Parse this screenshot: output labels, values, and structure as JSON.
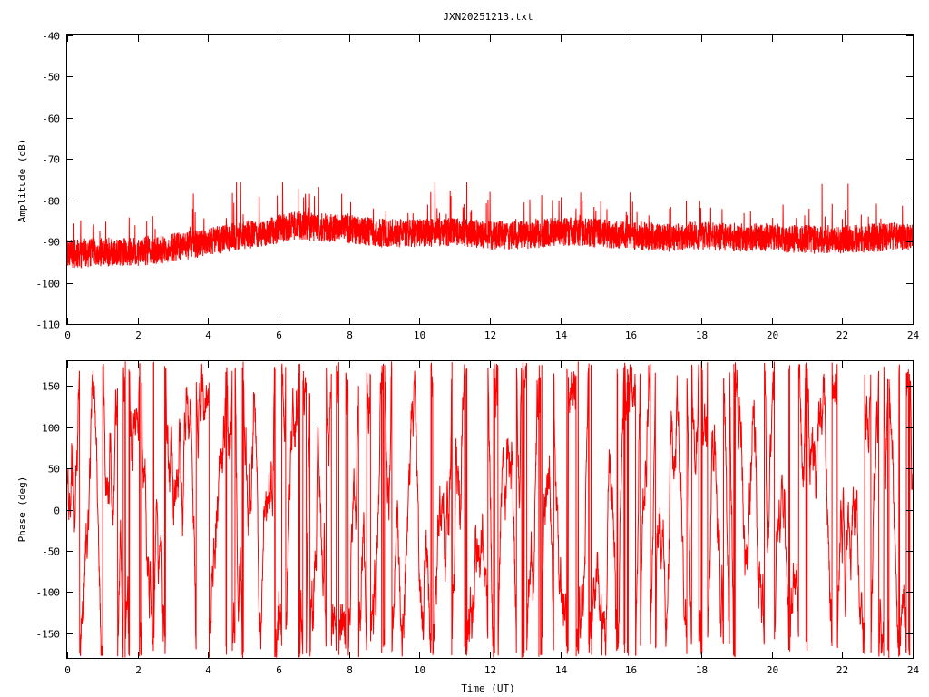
{
  "chart_data": [
    {
      "type": "line",
      "title": "JXN20251213.txt",
      "xlabel": "",
      "ylabel": "Amplitude (dB)",
      "xlim": [
        0,
        24
      ],
      "ylim": [
        -110,
        -40
      ],
      "xticks": [
        "0",
        "2",
        "4",
        "6",
        "8",
        "10",
        "12",
        "14",
        "16",
        "18",
        "20",
        "22",
        "24"
      ],
      "yticks": [
        "-40",
        "-50",
        "-60",
        "-70",
        "-80",
        "-90",
        "-100",
        "-110"
      ],
      "series": [
        {
          "color": "#ff0000",
          "trend_x": [
            0,
            1,
            2,
            3,
            4,
            5,
            6,
            6.5,
            7,
            8,
            9,
            10,
            11,
            12,
            13,
            14,
            15,
            16,
            17,
            18,
            19,
            20,
            21,
            22,
            23,
            24
          ],
          "trend_y": [
            -93,
            -92.5,
            -92.5,
            -91.5,
            -90,
            -88.5,
            -87,
            -86,
            -86.5,
            -87,
            -88,
            -88,
            -87.5,
            -88.5,
            -88.5,
            -87.5,
            -88,
            -88.5,
            -89,
            -88.5,
            -89,
            -89,
            -89.5,
            -89.5,
            -89,
            -88.5
          ],
          "band_halfwidth_db": 3.5,
          "spike_max_y": -75.5,
          "spike_min_y": -97
        }
      ]
    },
    {
      "type": "line",
      "xlabel": "Time (UT)",
      "ylabel": "Phase (deg)",
      "xlim": [
        0,
        24
      ],
      "ylim": [
        -180,
        180
      ],
      "xticks": [
        "0",
        "2",
        "4",
        "6",
        "8",
        "10",
        "12",
        "14",
        "16",
        "18",
        "20",
        "22",
        "24"
      ],
      "yticks": [
        "150",
        "100",
        "50",
        "0",
        "-50",
        "-100",
        "-150"
      ],
      "series": [
        {
          "color": "#ff0000",
          "wraps_at": [
            -180,
            180
          ],
          "behaviour": "rapidly varying phase wrapping between -180 and 180 deg throughout the day"
        }
      ]
    }
  ]
}
